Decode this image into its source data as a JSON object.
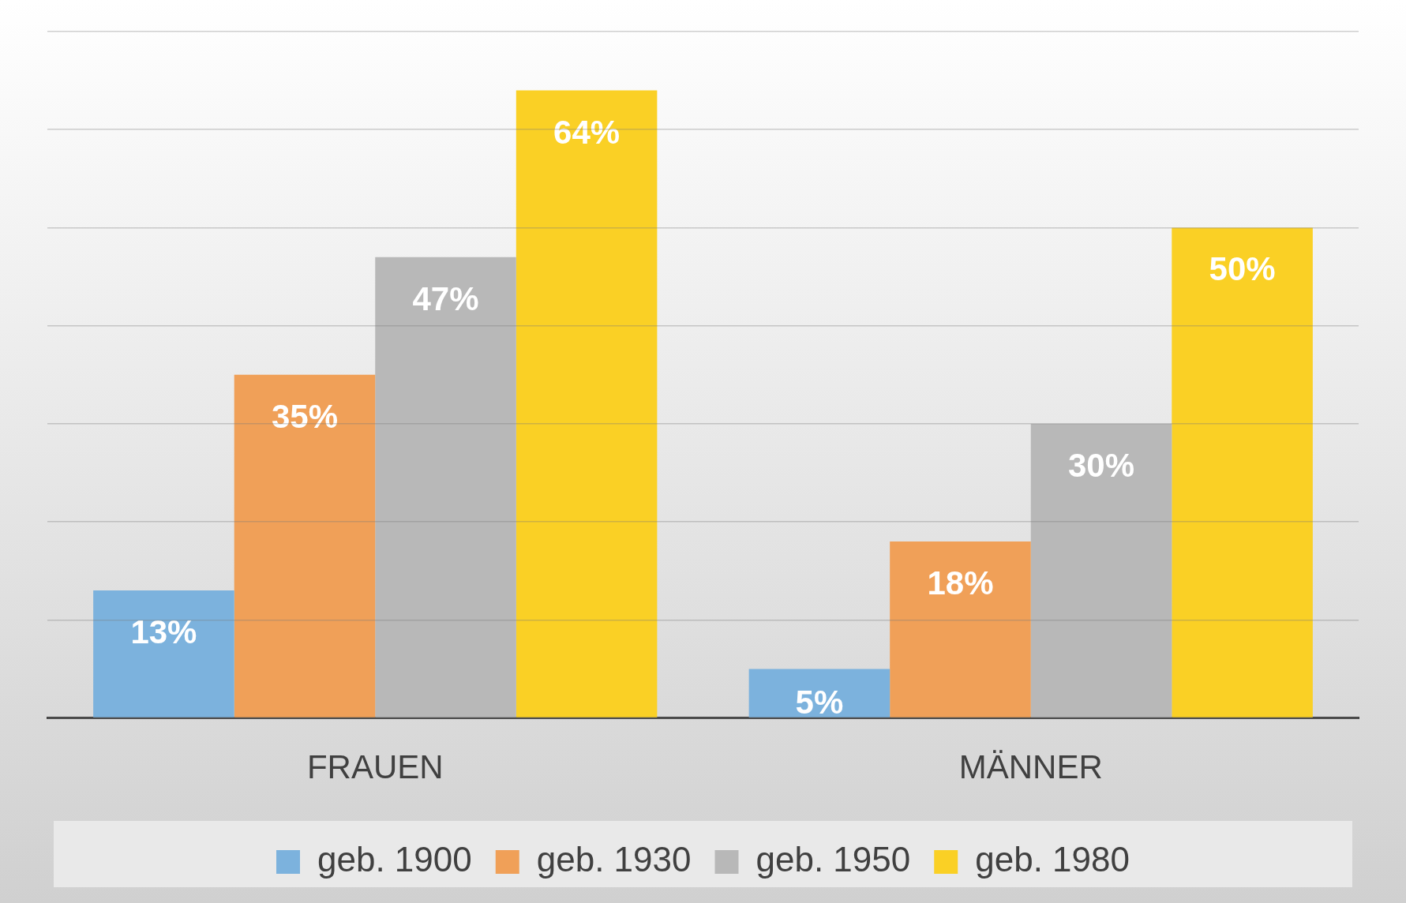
{
  "chart_data": {
    "type": "bar",
    "categories": [
      "FRAUEN",
      "MÄNNER"
    ],
    "series": [
      {
        "name": "geb. 1900",
        "color": "#7cb2dd",
        "values": [
          13,
          5
        ],
        "value_labels": [
          "13%",
          "5%"
        ]
      },
      {
        "name": "geb. 1930",
        "color": "#f0a058",
        "values": [
          35,
          18
        ],
        "value_labels": [
          "35%",
          "18%"
        ]
      },
      {
        "name": "geb. 1950",
        "color": "#b8b8b8",
        "values": [
          47,
          30
        ],
        "value_labels": [
          "47%",
          "30%"
        ]
      },
      {
        "name": "geb. 1980",
        "color": "#fad025",
        "values": [
          64,
          50
        ],
        "value_labels": [
          "64%",
          "50%"
        ]
      }
    ],
    "grid": "y",
    "legend": "bottom",
    "tick_labels": "x"
  }
}
